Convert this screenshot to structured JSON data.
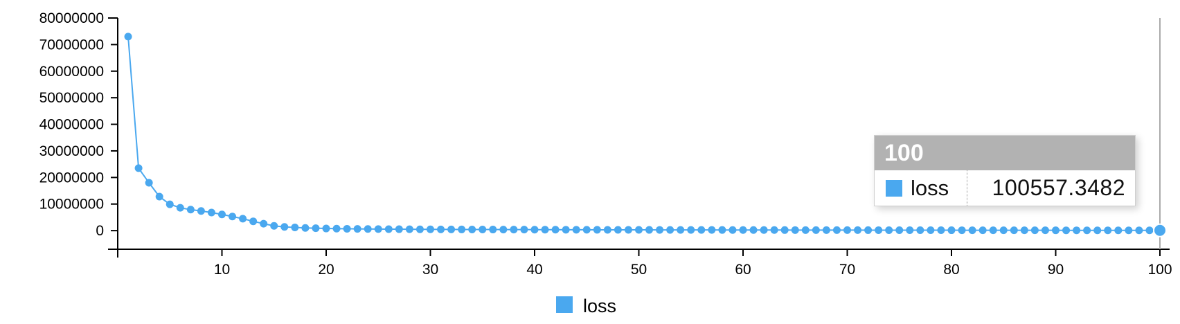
{
  "colors": {
    "series": "#4aa8ef",
    "axis": "#000000",
    "focus_line": "#aaaaaa"
  },
  "chart_data": {
    "type": "line",
    "title": "",
    "xlabel": "",
    "ylabel": "",
    "xlim": [
      0,
      100
    ],
    "ylim": [
      -7000000,
      80000000
    ],
    "x_ticks": [
      10,
      20,
      30,
      40,
      50,
      60,
      70,
      80,
      90,
      100
    ],
    "y_ticks": [
      0,
      10000000,
      20000000,
      30000000,
      40000000,
      50000000,
      60000000,
      70000000,
      80000000
    ],
    "grid": false,
    "legend_position": "bottom-center",
    "x": [
      1,
      2,
      3,
      4,
      5,
      6,
      7,
      8,
      9,
      10,
      11,
      12,
      13,
      14,
      15,
      16,
      17,
      18,
      19,
      20,
      21,
      22,
      23,
      24,
      25,
      26,
      27,
      28,
      29,
      30,
      31,
      32,
      33,
      34,
      35,
      36,
      37,
      38,
      39,
      40,
      41,
      42,
      43,
      44,
      45,
      46,
      47,
      48,
      49,
      50,
      51,
      52,
      53,
      54,
      55,
      56,
      57,
      58,
      59,
      60,
      61,
      62,
      63,
      64,
      65,
      66,
      67,
      68,
      69,
      70,
      71,
      72,
      73,
      74,
      75,
      76,
      77,
      78,
      79,
      80,
      81,
      82,
      83,
      84,
      85,
      86,
      87,
      88,
      89,
      90,
      91,
      92,
      93,
      94,
      95,
      96,
      97,
      98,
      99,
      100
    ],
    "series": [
      {
        "name": "loss",
        "values": [
          73000000,
          23500000,
          18000000,
          12800000,
          9900000,
          8600000,
          7900000,
          7400000,
          6800000,
          6100000,
          5300000,
          4500000,
          3500000,
          2600000,
          1800000,
          1400000,
          1200000,
          1000000,
          900000,
          800000,
          750000,
          700000,
          650000,
          620000,
          590000,
          560000,
          540000,
          520000,
          500000,
          480000,
          460000,
          450000,
          440000,
          430000,
          420000,
          410000,
          400000,
          390000,
          380000,
          370000,
          360000,
          350000,
          340000,
          330000,
          320000,
          310000,
          300000,
          295000,
          290000,
          285000,
          280000,
          275000,
          270000,
          265000,
          260000,
          255000,
          250000,
          245000,
          240000,
          235000,
          230000,
          225000,
          220000,
          215000,
          210000,
          205000,
          200000,
          196000,
          192000,
          188000,
          184000,
          180000,
          176000,
          172000,
          168000,
          164000,
          160000,
          156000,
          152000,
          148000,
          144000,
          140000,
          137000,
          134000,
          131000,
          128000,
          125000,
          122000,
          119000,
          116000,
          113000,
          111000,
          109000,
          107000,
          105000,
          104000,
          103000,
          102000,
          101000,
          100557.3482
        ]
      }
    ],
    "tooltip": {
      "x_label": "100",
      "series_name": "loss",
      "value": "100557.3482"
    },
    "legend": [
      "loss"
    ]
  }
}
